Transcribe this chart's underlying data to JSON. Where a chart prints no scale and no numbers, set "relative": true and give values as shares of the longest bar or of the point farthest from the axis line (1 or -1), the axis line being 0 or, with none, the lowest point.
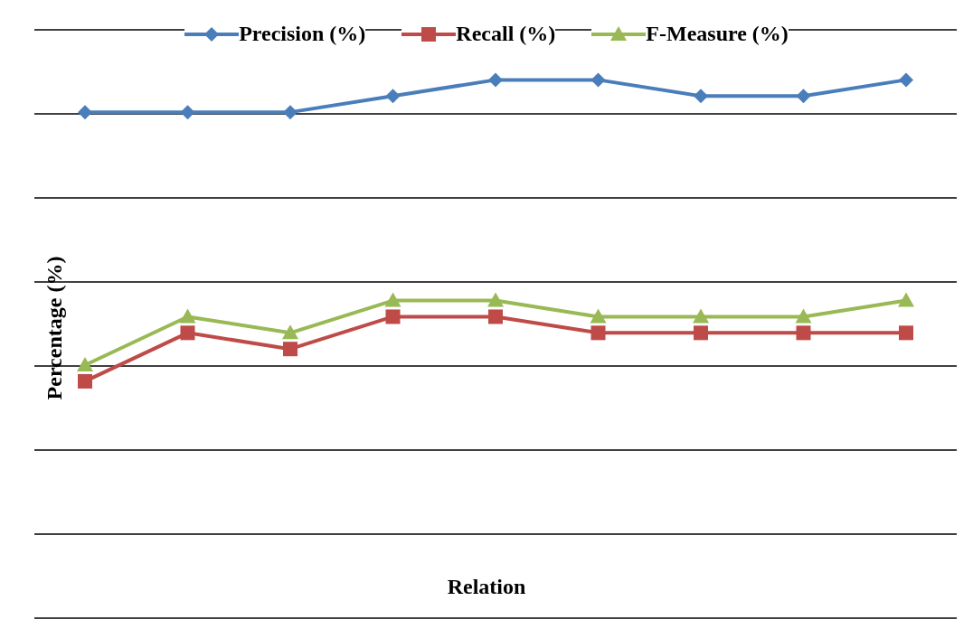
{
  "chart_data": {
    "type": "line",
    "relative": true,
    "xlabel": "Relation",
    "ylabel": "Percentage (%)",
    "categories": [
      null,
      null,
      null,
      null,
      null,
      null,
      null,
      null,
      null
    ],
    "series": [
      {
        "name": "Precision (%)",
        "color": "#4a7ebb",
        "marker": "diamond",
        "values": [
          0.94,
          0.94,
          0.94,
          0.97,
          1,
          1,
          0.97,
          0.97,
          1
        ]
      },
      {
        "name": "Recall (%)",
        "color": "#be4b48",
        "marker": "square",
        "values": [
          0.44,
          0.53,
          0.5,
          0.56,
          0.56,
          0.53,
          0.53,
          0.53,
          0.53
        ]
      },
      {
        "name": "F-Measure (%)",
        "color": "#98b954",
        "marker": "triangle",
        "values": [
          0.47,
          0.56,
          0.53,
          0.59,
          0.59,
          0.56,
          0.56,
          0.56,
          0.59
        ]
      }
    ],
    "grid": "y",
    "legend": "top",
    "tick_labels": false
  }
}
